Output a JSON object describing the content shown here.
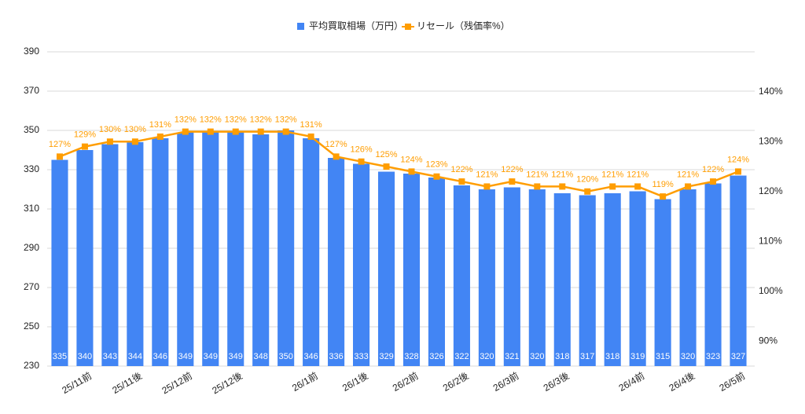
{
  "chart_data": {
    "type": "bar-line",
    "categories": [
      null,
      "25/11前",
      null,
      "25/11後",
      null,
      "25/12前",
      null,
      "25/12後",
      null,
      null,
      "26/1前",
      null,
      "26/1後",
      null,
      "26/2前",
      null,
      "26/2後",
      null,
      "26/3前",
      null,
      "26/3後",
      null,
      null,
      "26/4前",
      null,
      "26/4後",
      null,
      "26/5前"
    ],
    "series": [
      {
        "name": "平均買取相場（万円）",
        "type": "bar",
        "color": "#4285f4",
        "values": [
          335,
          340,
          343,
          344,
          346,
          349,
          349,
          349,
          348,
          350,
          346,
          336,
          333,
          329,
          328,
          326,
          322,
          320,
          321,
          320,
          318,
          317,
          318,
          319,
          315,
          320,
          323,
          327
        ]
      },
      {
        "name": "リセール（残価率%）",
        "type": "line",
        "axis": "y2",
        "color": "#ff9d00",
        "values": [
          127,
          129,
          130,
          130,
          131,
          132,
          132,
          132,
          132,
          132,
          131,
          127,
          126,
          125,
          124,
          123,
          122,
          121,
          122,
          121,
          121,
          120,
          121,
          121,
          119,
          121,
          122,
          124
        ],
        "value_labels": [
          "127%",
          "129%",
          "130%",
          "130%",
          "131%",
          "132%",
          "132%",
          "132%",
          "132%",
          "132%",
          "131%",
          "127%",
          "126%",
          "125%",
          "124%",
          "123%",
          "122%",
          "121%",
          "122%",
          "121%",
          "121%",
          "120%",
          "121%",
          "121%",
          "119%",
          "121%",
          "122%",
          "124%"
        ]
      }
    ],
    "ylim": [
      230,
      390
    ],
    "yticks": [
      230,
      250,
      270,
      290,
      310,
      330,
      350,
      370,
      390
    ],
    "y2lim": [
      85,
      148
    ],
    "y2ticks": [
      {
        "value": 90,
        "label": "90%"
      },
      {
        "value": 100,
        "label": "100%"
      },
      {
        "value": 110,
        "label": "110%"
      },
      {
        "value": 120,
        "label": "120%"
      },
      {
        "value": 130,
        "label": "130%"
      },
      {
        "value": 140,
        "label": "140%"
      }
    ],
    "grid": true,
    "legend": "top"
  }
}
